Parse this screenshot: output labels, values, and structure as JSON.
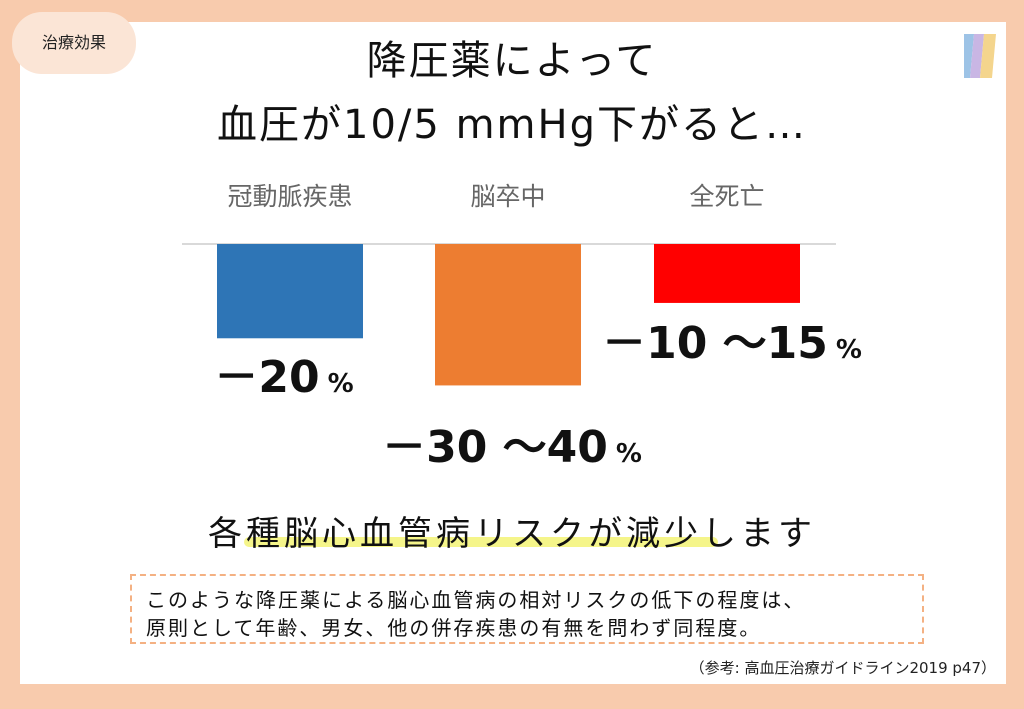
{
  "tag": "治療効果",
  "title_line1": "降圧薬によって",
  "title_line2": "血圧が10/5 mmHg下がると…",
  "chart_data": {
    "type": "bar",
    "orientation": "downward",
    "categories": [
      "冠動脈疾患",
      "脳卒中",
      "全死亡"
    ],
    "value_labels": [
      {
        "main": "－20",
        "unit": "%"
      },
      {
        "main": "－30 ～40",
        "unit": "%"
      },
      {
        "main": "－10 ～15",
        "unit": "%"
      }
    ],
    "values": [
      -20,
      -30,
      -12.5
    ],
    "ranges": [
      [
        -20,
        -20
      ],
      [
        -30,
        -40
      ],
      [
        -10,
        -15
      ]
    ],
    "colors": [
      "#2e75b6",
      "#ed7d31",
      "#ff0000"
    ]
  },
  "summary": "各種脳心血管病リスクが減少します",
  "note_line1": "このような降圧薬による脳心血管病の相対リスクの低下の程度は、",
  "note_line2": "原則として年齢、男女、他の併存疾患の有無を問わず同程度。",
  "source": "（参考: 高血圧治療ガイドライン2019 p47）",
  "colors": {
    "background": "#f8cbad",
    "tag_bg": "#fbe5d6",
    "highlight": "#f5f58a",
    "note_border": "#f4b183"
  }
}
